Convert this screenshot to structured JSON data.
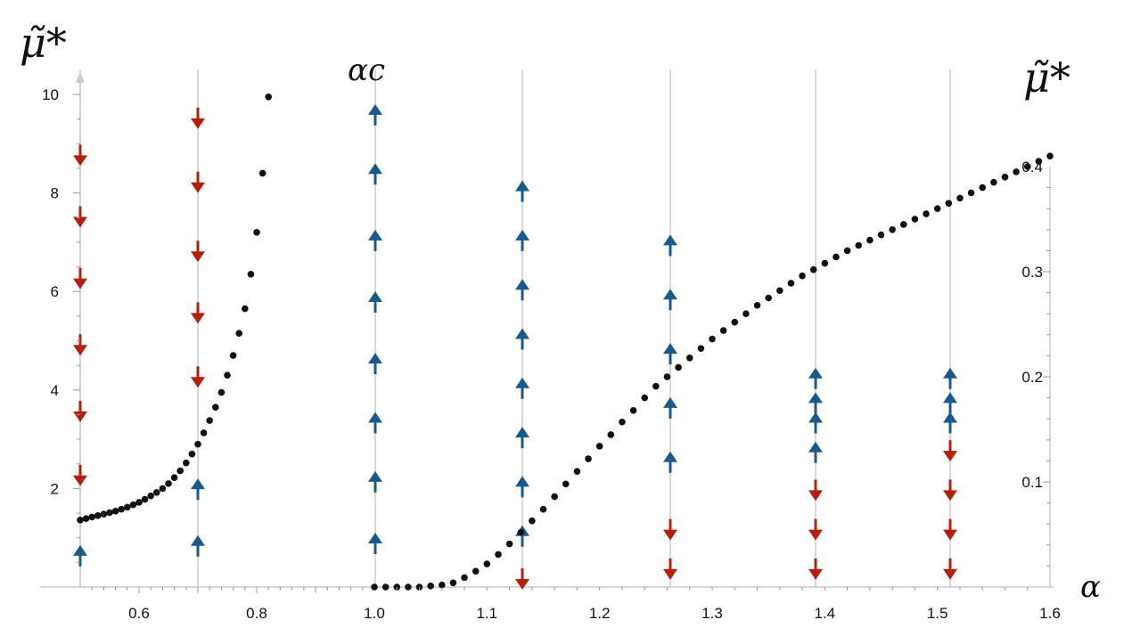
{
  "chart_data": {
    "type": "scatter",
    "title": "",
    "labels": {
      "left_axis": "μ̃*",
      "right_axis": "μ̃*",
      "x_axis": "α",
      "critical": "αc"
    },
    "left_region": {
      "xlim": [
        0.48,
        1.0
      ],
      "ylim": [
        0,
        10
      ],
      "xticks": [
        0.6,
        0.8,
        1.0
      ],
      "yticks": [
        2,
        4,
        6,
        8,
        10
      ],
      "points": [
        [
          0.5,
          1.36
        ],
        [
          0.51,
          1.39
        ],
        [
          0.52,
          1.42
        ],
        [
          0.53,
          1.45
        ],
        [
          0.54,
          1.48
        ],
        [
          0.55,
          1.51
        ],
        [
          0.56,
          1.54
        ],
        [
          0.57,
          1.58
        ],
        [
          0.58,
          1.62
        ],
        [
          0.59,
          1.67
        ],
        [
          0.6,
          1.72
        ],
        [
          0.61,
          1.78
        ],
        [
          0.62,
          1.85
        ],
        [
          0.63,
          1.92
        ],
        [
          0.64,
          2.0
        ],
        [
          0.65,
          2.1
        ],
        [
          0.66,
          2.22
        ],
        [
          0.67,
          2.36
        ],
        [
          0.68,
          2.52
        ],
        [
          0.69,
          2.7
        ],
        [
          0.7,
          2.9
        ],
        [
          0.71,
          3.13
        ],
        [
          0.72,
          3.38
        ],
        [
          0.73,
          3.65
        ],
        [
          0.74,
          3.95
        ],
        [
          0.75,
          4.3
        ],
        [
          0.76,
          4.7
        ],
        [
          0.77,
          5.15
        ],
        [
          0.78,
          5.65
        ],
        [
          0.79,
          6.35
        ],
        [
          0.8,
          7.2
        ],
        [
          0.81,
          8.4
        ],
        [
          0.82,
          9.95
        ]
      ],
      "vector_columns": [
        {
          "x": 0.5,
          "arrows": [
            [
              0.6,
              "up"
            ],
            [
              2.3,
              "down"
            ],
            [
              3.6,
              "down"
            ],
            [
              4.95,
              "down"
            ],
            [
              6.3,
              "down"
            ],
            [
              7.55,
              "down"
            ],
            [
              8.8,
              "down"
            ]
          ]
        },
        {
          "x": 0.7,
          "arrows": [
            [
              0.8,
              "up"
            ],
            [
              1.95,
              "up"
            ],
            [
              4.3,
              "down"
            ],
            [
              5.6,
              "down"
            ],
            [
              6.85,
              "down"
            ],
            [
              8.25,
              "down"
            ],
            [
              9.55,
              "down"
            ]
          ]
        },
        {
          "x": 1.0,
          "arrows": [
            [
              0.85,
              "up"
            ],
            [
              2.1,
              "up"
            ],
            [
              3.3,
              "up"
            ],
            [
              4.5,
              "up"
            ],
            [
              5.75,
              "up"
            ],
            [
              7.0,
              "up"
            ],
            [
              8.35,
              "up"
            ],
            [
              9.55,
              "up"
            ]
          ]
        }
      ]
    },
    "right_region": {
      "xlim": [
        1.0,
        1.6
      ],
      "ylim": [
        0,
        0.4
      ],
      "xticks": [
        1.1,
        1.2,
        1.3,
        1.4,
        1.5,
        1.6
      ],
      "yticks": [
        0.1,
        0.2,
        0.3,
        0.4
      ],
      "points": [
        [
          1.0,
          0.0
        ],
        [
          1.01,
          0.0
        ],
        [
          1.02,
          0.0
        ],
        [
          1.03,
          0.0
        ],
        [
          1.04,
          0.0
        ],
        [
          1.05,
          0.001
        ],
        [
          1.06,
          0.002
        ],
        [
          1.07,
          0.004
        ],
        [
          1.08,
          0.009
        ],
        [
          1.09,
          0.015
        ],
        [
          1.1,
          0.022
        ],
        [
          1.11,
          0.031
        ],
        [
          1.12,
          0.041
        ],
        [
          1.13,
          0.052
        ],
        [
          1.14,
          0.063
        ],
        [
          1.15,
          0.074
        ],
        [
          1.16,
          0.086
        ],
        [
          1.17,
          0.098
        ],
        [
          1.18,
          0.11
        ],
        [
          1.19,
          0.122
        ],
        [
          1.2,
          0.134
        ],
        [
          1.21,
          0.145
        ],
        [
          1.22,
          0.157
        ],
        [
          1.23,
          0.168
        ],
        [
          1.24,
          0.18
        ],
        [
          1.25,
          0.191
        ],
        [
          1.26,
          0.2
        ],
        [
          1.27,
          0.209
        ],
        [
          1.28,
          0.218
        ],
        [
          1.29,
          0.227
        ],
        [
          1.3,
          0.236
        ],
        [
          1.31,
          0.244
        ],
        [
          1.32,
          0.252
        ],
        [
          1.33,
          0.26
        ],
        [
          1.34,
          0.268
        ],
        [
          1.35,
          0.275
        ],
        [
          1.36,
          0.282
        ],
        [
          1.37,
          0.289
        ],
        [
          1.38,
          0.296
        ],
        [
          1.39,
          0.302
        ],
        [
          1.4,
          0.308
        ],
        [
          1.41,
          0.314
        ],
        [
          1.42,
          0.32
        ],
        [
          1.43,
          0.325
        ],
        [
          1.44,
          0.33
        ],
        [
          1.45,
          0.335
        ],
        [
          1.46,
          0.34
        ],
        [
          1.47,
          0.345
        ],
        [
          1.48,
          0.35
        ],
        [
          1.49,
          0.355
        ],
        [
          1.5,
          0.36
        ],
        [
          1.51,
          0.365
        ],
        [
          1.52,
          0.37
        ],
        [
          1.53,
          0.375
        ],
        [
          1.54,
          0.38
        ],
        [
          1.55,
          0.385
        ],
        [
          1.56,
          0.39
        ],
        [
          1.57,
          0.395
        ],
        [
          1.58,
          0.4
        ],
        [
          1.59,
          0.405
        ],
        [
          1.6,
          0.41
        ]
      ],
      "vector_columns": [
        {
          "x": 1.1,
          "arrows": [
            [
              0.02,
              "down"
            ],
            [
              0.1,
              "up"
            ],
            [
              0.2,
              "up"
            ],
            [
              0.3,
              "up"
            ],
            [
              0.4,
              "up"
            ],
            [
              0.5,
              "up"
            ],
            [
              0.6,
              "up"
            ],
            [
              0.7,
              "up"
            ],
            [
              0.8,
              "up"
            ]
          ]
        },
        {
          "x": 1.27,
          "arrows": [
            [
              0.04,
              "down"
            ],
            [
              0.12,
              "down"
            ],
            [
              0.25,
              "up"
            ],
            [
              0.36,
              "up"
            ],
            [
              0.47,
              "up"
            ],
            [
              0.58,
              "up"
            ],
            [
              0.69,
              "up"
            ]
          ]
        },
        {
          "x": 1.4,
          "arrows": [
            [
              0.04,
              "down"
            ],
            [
              0.12,
              "down"
            ],
            [
              0.2,
              "down"
            ],
            [
              0.27,
              "up"
            ],
            [
              0.33,
              "up"
            ],
            [
              0.37,
              "up"
            ],
            [
              0.42,
              "up"
            ]
          ]
        },
        {
          "x": 1.5,
          "arrows": [
            [
              0.04,
              "down"
            ],
            [
              0.12,
              "down"
            ],
            [
              0.2,
              "down"
            ],
            [
              0.28,
              "down"
            ],
            [
              0.33,
              "up"
            ],
            [
              0.37,
              "up"
            ],
            [
              0.42,
              "up"
            ]
          ]
        }
      ]
    }
  },
  "colors": {
    "up_arrow": "#1a5a8a",
    "down_arrow": "#b5200e",
    "point": "#111111",
    "axis": "#cccccc"
  }
}
